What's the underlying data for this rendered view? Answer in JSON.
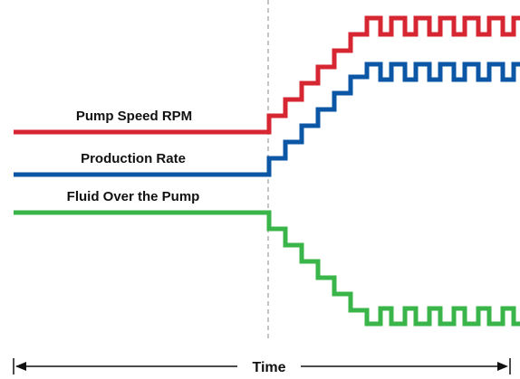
{
  "diagram": {
    "axis": {
      "label": "Time"
    },
    "series": [
      {
        "id": "pump-speed",
        "label": "Pump Speed RPM",
        "color": "#d62631"
      },
      {
        "id": "production-rate",
        "label": "Production Rate",
        "color": "#0b57a6"
      },
      {
        "id": "fluid-over-pump",
        "label": "Fluid Over the Pump",
        "color": "#3ab54a"
      }
    ]
  }
}
